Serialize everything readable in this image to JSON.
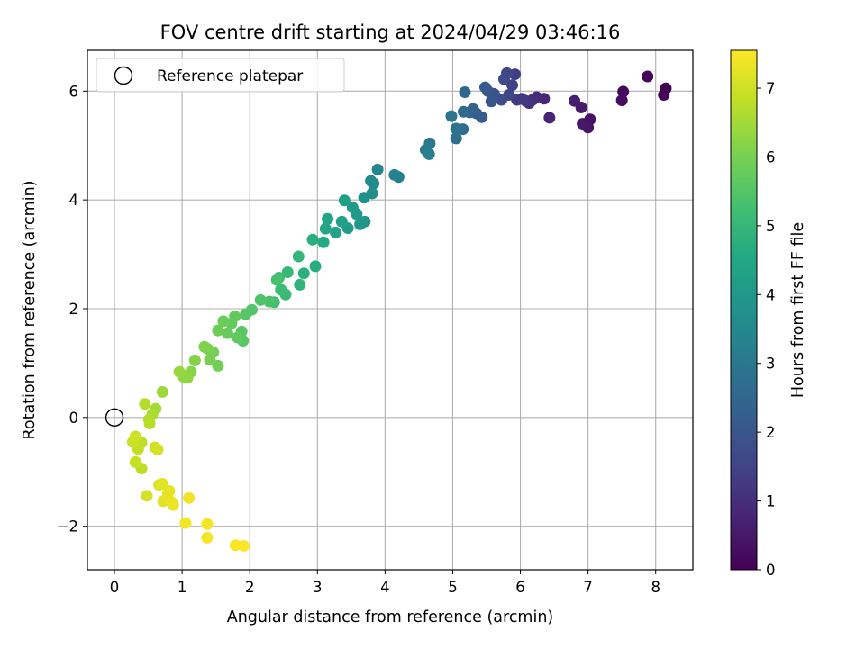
{
  "chart_data": {
    "type": "scatter",
    "title": "FOV centre drift starting at 2024/04/29 03:46:16",
    "xlabel": "Angular distance from reference (arcmin)",
    "ylabel": "Rotation from reference (arcmin)",
    "xlim": [
      -0.4,
      8.55
    ],
    "ylim": [
      -2.8,
      6.75
    ],
    "xticks": [
      "0",
      "1",
      "2",
      "3",
      "4",
      "5",
      "6",
      "7",
      "8"
    ],
    "yticks": [
      "−2",
      "0",
      "2",
      "4",
      "6"
    ],
    "grid": true,
    "colormap": "viridis",
    "colorbar": {
      "label": "Hours from first FF file",
      "range": [
        0,
        7.55
      ],
      "ticks": [
        "0",
        "1",
        "2",
        "3",
        "4",
        "5",
        "6",
        "7"
      ]
    },
    "legend": {
      "position": "upper-left",
      "entries": [
        {
          "label": "Reference platepar",
          "marker": "open-circle"
        }
      ]
    },
    "reference_point": {
      "x": 0,
      "y": 0
    },
    "points": [
      [
        8.15,
        6.05,
        0.0
      ],
      [
        8.12,
        5.93,
        0.06
      ],
      [
        7.88,
        6.27,
        0.12
      ],
      [
        7.52,
        5.99,
        0.2
      ],
      [
        7.5,
        5.83,
        0.26
      ],
      [
        7.03,
        5.48,
        0.34
      ],
      [
        7.0,
        5.33,
        0.4
      ],
      [
        6.92,
        5.4,
        0.48
      ],
      [
        6.9,
        5.7,
        0.56
      ],
      [
        6.8,
        5.82,
        0.63
      ],
      [
        6.43,
        5.51,
        0.75
      ],
      [
        6.35,
        5.86,
        0.85
      ],
      [
        6.24,
        5.89,
        0.93
      ],
      [
        6.18,
        5.84,
        1.0
      ],
      [
        6.13,
        5.78,
        1.08
      ],
      [
        6.08,
        5.82,
        1.15
      ],
      [
        6.02,
        5.86,
        1.22
      ],
      [
        5.95,
        5.84,
        1.3
      ],
      [
        5.92,
        6.31,
        1.38
      ],
      [
        5.88,
        6.11,
        1.45
      ],
      [
        5.83,
        5.93,
        1.52
      ],
      [
        5.8,
        6.33,
        1.6
      ],
      [
        5.76,
        6.22,
        1.68
      ],
      [
        5.72,
        5.84,
        1.75
      ],
      [
        5.65,
        5.88,
        1.83
      ],
      [
        5.61,
        5.95,
        1.9
      ],
      [
        5.57,
        5.81,
        1.98
      ],
      [
        5.52,
        6.0,
        2.05
      ],
      [
        5.48,
        6.07,
        2.13
      ],
      [
        5.43,
        5.52,
        2.2
      ],
      [
        5.35,
        5.59,
        2.28
      ],
      [
        5.3,
        5.67,
        2.36
      ],
      [
        5.25,
        5.61,
        2.44
      ],
      [
        5.18,
        5.98,
        2.52
      ],
      [
        5.16,
        5.62,
        2.6
      ],
      [
        5.15,
        5.3,
        2.68
      ],
      [
        5.05,
        5.13,
        2.76
      ],
      [
        5.05,
        5.31,
        2.84
      ],
      [
        4.98,
        5.54,
        2.92
      ],
      [
        4.66,
        5.04,
        3.0
      ],
      [
        4.6,
        4.92,
        3.08
      ],
      [
        4.65,
        4.84,
        3.16
      ],
      [
        4.2,
        4.42,
        3.24
      ],
      [
        4.14,
        4.46,
        3.32
      ],
      [
        3.89,
        4.56,
        3.4
      ],
      [
        3.83,
        4.3,
        3.5
      ],
      [
        3.79,
        4.35,
        3.6
      ],
      [
        3.81,
        4.12,
        3.7
      ],
      [
        3.69,
        4.04,
        3.78
      ],
      [
        3.7,
        3.6,
        3.86
      ],
      [
        3.63,
        3.55,
        3.94
      ],
      [
        3.58,
        3.74,
        4.02
      ],
      [
        3.52,
        3.86,
        4.08
      ],
      [
        3.45,
        3.48,
        4.14
      ],
      [
        3.4,
        3.99,
        4.2
      ],
      [
        3.36,
        3.6,
        4.26
      ],
      [
        3.27,
        3.4,
        4.32
      ],
      [
        3.15,
        3.65,
        4.4
      ],
      [
        3.12,
        3.47,
        4.48
      ],
      [
        3.09,
        3.22,
        4.56
      ],
      [
        2.97,
        2.78,
        4.64
      ],
      [
        2.93,
        3.27,
        4.72
      ],
      [
        2.8,
        2.65,
        4.8
      ],
      [
        2.74,
        2.44,
        4.88
      ],
      [
        2.72,
        2.96,
        4.96
      ],
      [
        2.56,
        2.67,
        5.02
      ],
      [
        2.53,
        2.26,
        5.08
      ],
      [
        2.46,
        2.35,
        5.14
      ],
      [
        2.43,
        2.57,
        5.2
      ],
      [
        2.36,
        2.12,
        5.26
      ],
      [
        2.4,
        2.53,
        5.32
      ],
      [
        2.29,
        2.13,
        5.38
      ],
      [
        2.16,
        2.16,
        5.44
      ],
      [
        2.03,
        1.98,
        5.5
      ],
      [
        1.94,
        1.9,
        5.54
      ],
      [
        1.9,
        1.41,
        5.58
      ],
      [
        1.88,
        1.58,
        5.62
      ],
      [
        1.82,
        1.47,
        5.66
      ],
      [
        1.78,
        1.86,
        5.7
      ],
      [
        1.73,
        1.73,
        5.74
      ],
      [
        1.67,
        1.55,
        5.78
      ],
      [
        1.61,
        1.77,
        5.82
      ],
      [
        1.53,
        1.6,
        5.86
      ],
      [
        1.53,
        0.95,
        5.9
      ],
      [
        1.46,
        1.2,
        5.95
      ],
      [
        1.41,
        1.06,
        6.0
      ],
      [
        1.38,
        1.26,
        6.05
      ],
      [
        1.33,
        1.3,
        6.1
      ],
      [
        1.19,
        1.05,
        6.15
      ],
      [
        1.13,
        0.84,
        6.2
      ],
      [
        1.08,
        0.73,
        6.25
      ],
      [
        1.02,
        0.75,
        6.3
      ],
      [
        0.96,
        0.84,
        6.35
      ],
      [
        0.71,
        0.47,
        6.45
      ],
      [
        0.61,
        0.16,
        6.52
      ],
      [
        0.56,
        0.06,
        6.58
      ],
      [
        0.51,
        -0.04,
        6.64
      ],
      [
        0.45,
        0.25,
        6.7
      ],
      [
        0.52,
        -0.11,
        6.74
      ],
      [
        0.4,
        -0.46,
        6.78
      ],
      [
        0.4,
        -0.94,
        6.82
      ],
      [
        0.35,
        -0.58,
        6.86
      ],
      [
        0.31,
        -0.82,
        6.9
      ],
      [
        0.27,
        -0.45,
        6.94
      ],
      [
        0.31,
        -0.35,
        6.98
      ],
      [
        0.6,
        -0.55,
        7.02
      ],
      [
        0.64,
        -0.59,
        7.06
      ],
      [
        0.48,
        -1.44,
        7.1
      ],
      [
        0.66,
        -1.24,
        7.14
      ],
      [
        0.72,
        -1.54,
        7.18
      ],
      [
        0.71,
        -1.22,
        7.22
      ],
      [
        0.79,
        -1.4,
        7.26
      ],
      [
        0.81,
        -1.35,
        7.28
      ],
      [
        0.8,
        -1.5,
        7.3
      ],
      [
        0.85,
        -1.56,
        7.32
      ],
      [
        0.87,
        -1.61,
        7.34
      ],
      [
        1.1,
        -1.48,
        7.38
      ],
      [
        1.05,
        -1.94,
        7.42
      ],
      [
        1.37,
        -1.96,
        7.44
      ],
      [
        1.37,
        -2.21,
        7.46
      ],
      [
        1.79,
        -2.35,
        7.5
      ],
      [
        1.91,
        -2.36,
        7.53
      ]
    ]
  }
}
